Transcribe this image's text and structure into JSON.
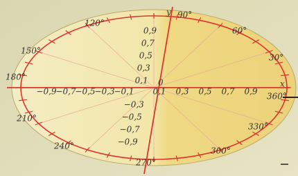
{
  "axes": {
    "x": "x",
    "y": "y",
    "origin": "0"
  },
  "angle_labels": [
    "90°",
    "60°",
    "30°",
    "360°",
    "330°",
    "300°",
    "270°",
    "240°",
    "210°",
    "180°",
    "150°",
    "120°"
  ],
  "x_labels": [
    "−0,9",
    "−0,7",
    "−0,5",
    "−0,3",
    "−0,1",
    "0,1",
    "0,3",
    "0,5",
    "0,7",
    "0,9"
  ],
  "y_labels": [
    "0,9",
    "0,7",
    "0,5",
    "0,3",
    "0,1",
    "−0,3",
    "−0,5",
    "−0,7",
    "−0,9"
  ]
}
